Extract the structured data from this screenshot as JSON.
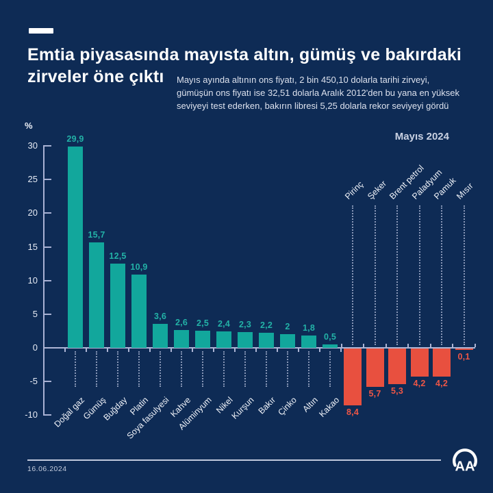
{
  "header": {
    "title_lines": [
      "Emtia piyasasında mayısta altın, gümüş ve bakırdaki",
      "zirveler öne çıktı"
    ],
    "subtitle_lines": [
      "Mayıs ayında altının ons fiyatı, 2 bin 450,10 dolarla tarihi zirveyi,",
      "gümüşün ons fiyatı ise 32,51 dolarla Aralık 2012'den bu yana en yüksek",
      "seviyeyi test ederken, bakırın libresi 5,25 dolarla rekor seviyeyi gördü"
    ],
    "period_label": "Mayıs 2024"
  },
  "footer": {
    "date": "16.06.2024",
    "logo_name": "aa-anadolu-ajansi-logo"
  },
  "chart_data": {
    "type": "bar",
    "unit_label": "%",
    "title": "Emtia piyasasında mayısta altın, gümüş ve bakırdaki zirveler öne çıktı",
    "categories": [
      "Doğal gaz",
      "Gümüş",
      "Buğday",
      "Platin",
      "Soya fasulyesi",
      "Kahve",
      "Alüminyum",
      "Nikel",
      "Kurşun",
      "Bakır",
      "Çinko",
      "Altın",
      "Kakao",
      "Pirinç",
      "Şeker",
      "Brent petrol",
      "Paladyum",
      "Pamuk",
      "Mısır"
    ],
    "values": [
      29.9,
      15.7,
      12.5,
      10.9,
      3.6,
      2.6,
      2.5,
      2.4,
      2.3,
      2.2,
      2,
      1.8,
      0.5,
      -8.4,
      -5.7,
      -5.3,
      -4.2,
      -4.2,
      -0.1
    ],
    "value_labels": [
      "29,9",
      "15,7",
      "12,5",
      "10,9",
      "3,6",
      "2,6",
      "2,5",
      "2,4",
      "2,3",
      "2,2",
      "2",
      "1,8",
      "0,5",
      "8,4",
      "5,7",
      "5,3",
      "4,2",
      "4,2",
      "0,1"
    ],
    "positive_count": 13,
    "y_ticks": [
      30,
      25,
      20,
      15,
      10,
      5,
      0,
      -5,
      -10
    ],
    "y_tick_labels": [
      "30",
      "25",
      "20",
      "15",
      "10",
      "5",
      "0",
      "-5",
      "-10"
    ],
    "ylim": [
      -10,
      30
    ],
    "xlabel": "",
    "ylabel": "%",
    "grid": false,
    "legend": false,
    "positive_color": "#12a79c",
    "negative_color": "#e8503f",
    "background_color": "#0e2b55",
    "axis_color": "#aeb6d6"
  }
}
